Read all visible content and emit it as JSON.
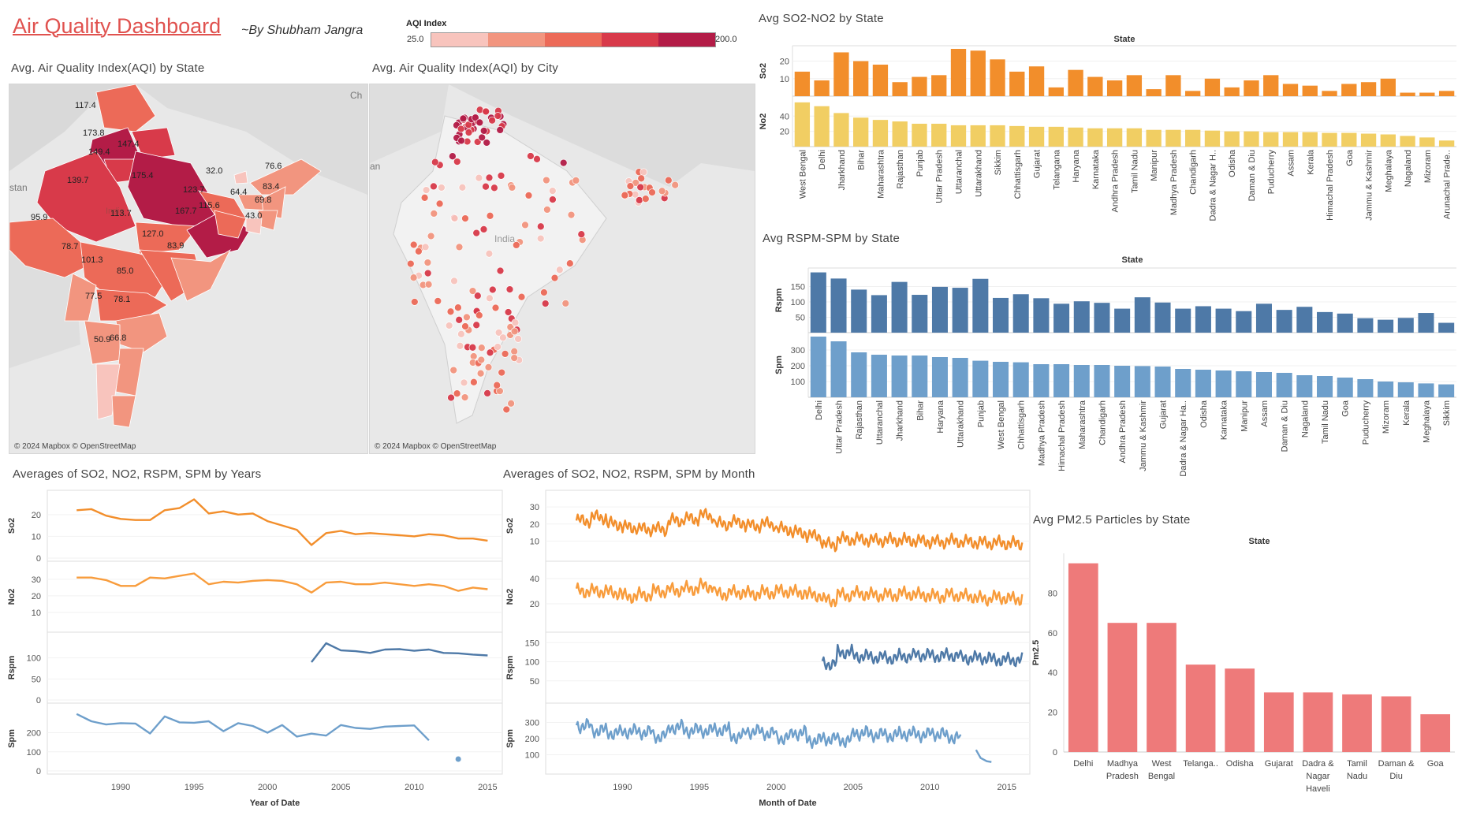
{
  "header": {
    "title": "Air Quality Dashboard",
    "byline": "~By Shubham Jangra"
  },
  "legend": {
    "title": "AQI Index",
    "min": "25.0",
    "max": "200.0",
    "colors": [
      "#f8c4bd",
      "#f2957f",
      "#ec6a58",
      "#d83a4a",
      "#b31c47"
    ]
  },
  "map_state": {
    "title": "Avg. Air Quality Index(AQI) by State",
    "attribution": "© 2024 Mapbox © OpenStreetMap",
    "labels": [
      "117.4",
      "173.8",
      "147.4",
      "149.4",
      "139.7",
      "175.4",
      "32.0",
      "76.6",
      "64.4",
      "83.4",
      "69.8",
      "43.0",
      "123.7",
      "115.6",
      "167.7",
      "113.7",
      "95.9",
      "127.0",
      "83.9",
      "78.7",
      "101.3",
      "85.0",
      "77.5",
      "78.1",
      "50.9",
      "66.8"
    ],
    "bg_words": [
      "stan",
      "Ch",
      "India"
    ]
  },
  "map_city": {
    "title": "Avg. Air Quality Index(AQI) by City",
    "attribution": "© 2024 Mapbox © OpenStreetMap",
    "bg_words": [
      "an",
      "India"
    ]
  },
  "chart_data": [
    {
      "id": "so2no2",
      "type": "bar",
      "title": "Avg SO2-NO2 by State",
      "xlabel": "State",
      "categories": [
        "West Bengal",
        "Delhi",
        "Jharkhand",
        "Bihar",
        "Maharashtra",
        "Rajasthan",
        "Punjab",
        "Uttar Pradesh",
        "Uttaranchal",
        "Uttarakhand",
        "Sikkim",
        "Chhattisgarh",
        "Gujarat",
        "Telangana",
        "Haryana",
        "Karnataka",
        "Andhra Pradesh",
        "Tamil Nadu",
        "Manipur",
        "Madhya Pradesh",
        "Chandigarh",
        "Dadra & Nagar H..",
        "Odisha",
        "Daman & Diu",
        "Puducherry",
        "Assam",
        "Kerala",
        "Himachal Pradesh",
        "Goa",
        "Jammu & Kashmir",
        "Meghalaya",
        "Nagaland",
        "Mizoram",
        "Arunachal Prade.."
      ],
      "series": [
        {
          "name": "So2",
          "color": "#f28e2b",
          "ticks": [
            10,
            20
          ],
          "max": 27,
          "values": [
            14,
            9,
            25,
            20,
            18,
            8,
            11,
            12,
            27,
            26,
            21,
            14,
            17,
            5,
            15,
            11,
            9,
            12,
            4,
            12,
            3,
            10,
            5,
            9,
            12,
            7,
            6,
            3,
            7,
            8,
            10,
            2,
            2,
            3
          ]
        },
        {
          "name": "No2",
          "color": "#f1ce63",
          "ticks": [
            20,
            40
          ],
          "max": 62,
          "values": [
            58,
            53,
            44,
            38,
            35,
            33,
            30,
            30,
            28,
            28,
            28,
            27,
            26,
            26,
            25,
            24,
            24,
            24,
            22,
            22,
            22,
            21,
            20,
            20,
            19,
            19,
            19,
            18,
            18,
            17,
            16,
            14,
            12,
            8
          ]
        }
      ]
    },
    {
      "id": "rspmspm",
      "type": "bar",
      "title": "Avg RSPM-SPM by State",
      "xlabel": "State",
      "categories": [
        "Delhi",
        "Uttar Pradesh",
        "Rajasthan",
        "Uttaranchal",
        "Jharkhand",
        "Bihar",
        "Haryana",
        "Uttarakhand",
        "Punjab",
        "West Bengal",
        "Chhattisgarh",
        "Madhya Pradesh",
        "Himachal Pradesh",
        "Maharashtra",
        "Chandigarh",
        "Andhra Pradesh",
        "Jammu & Kashmir",
        "Gujarat",
        "Dadra & Nagar Ha..",
        "Odisha",
        "Karnataka",
        "Manipur",
        "Assam",
        "Daman & Diu",
        "Nagaland",
        "Tamil Nadu",
        "Goa",
        "Puducherry",
        "Mizoram",
        "Kerala",
        "Meghalaya",
        "Sikkim"
      ],
      "series": [
        {
          "name": "Rspm",
          "color": "#4e79a7",
          "ticks": [
            50,
            100,
            150
          ],
          "max": 200,
          "values": [
            196,
            176,
            140,
            122,
            165,
            123,
            149,
            146,
            175,
            113,
            125,
            112,
            94,
            102,
            97,
            78,
            115,
            98,
            78,
            86,
            78,
            70,
            94,
            74,
            84,
            67,
            62,
            47,
            42,
            48,
            64,
            32
          ]
        },
        {
          "name": "Spm",
          "color": "#6e9fcb",
          "ticks": [
            100,
            200,
            300
          ],
          "max": 390,
          "values": [
            385,
            355,
            285,
            270,
            265,
            265,
            255,
            250,
            232,
            225,
            222,
            210,
            210,
            205,
            205,
            200,
            198,
            195,
            180,
            175,
            170,
            165,
            160,
            155,
            140,
            135,
            125,
            115,
            100,
            95,
            88,
            82
          ]
        }
      ]
    },
    {
      "id": "pm25",
      "type": "bar",
      "title": "Avg PM2.5 Particles by State",
      "xlabel": "State",
      "ylabel": "Pm2.5",
      "ticks": [
        0,
        20,
        40,
        60,
        80
      ],
      "ylim": [
        0,
        100
      ],
      "color": "#ee7a7a",
      "categories": [
        "Delhi",
        "Madhya Pradesh",
        "West Bengal",
        "Telanga..",
        "Odisha",
        "Gujarat",
        "Dadra & Nagar Haveli",
        "Tamil Nadu",
        "Daman & Diu",
        "Goa"
      ],
      "values": [
        95,
        65,
        65,
        44,
        42,
        30,
        30,
        29,
        28,
        19
      ]
    },
    {
      "id": "years",
      "type": "line",
      "title": "Averages of SO2, NO2, RSPM, SPM by Years",
      "xlabel": "Year of Date",
      "xticks": [
        1990,
        1995,
        2000,
        2005,
        2010,
        2015
      ],
      "xlim": [
        1985,
        2016
      ],
      "series": [
        {
          "name": "So2",
          "color": "#f28e2b",
          "ticks": [
            0,
            10,
            20
          ],
          "ylim": [
            0,
            29
          ],
          "points": [
            [
              1987,
              22
            ],
            [
              1988,
              22.5
            ],
            [
              1989,
              19.5
            ],
            [
              1990,
              18
            ],
            [
              1991,
              17.5
            ],
            [
              1992,
              17.5
            ],
            [
              1993,
              22
            ],
            [
              1994,
              23
            ],
            [
              1995,
              27
            ],
            [
              1996,
              20.5
            ],
            [
              1997,
              21.5
            ],
            [
              1998,
              20
            ],
            [
              1999,
              20.5
            ],
            [
              2000,
              17
            ],
            [
              2001,
              15
            ],
            [
              2002,
              13
            ],
            [
              2003,
              6
            ],
            [
              2004,
              11.5
            ],
            [
              2005,
              12.5
            ],
            [
              2006,
              11
            ],
            [
              2007,
              11.5
            ],
            [
              2008,
              11
            ],
            [
              2009,
              10.5
            ],
            [
              2010,
              10
            ],
            [
              2011,
              11
            ],
            [
              2012,
              10.5
            ],
            [
              2013,
              9
            ],
            [
              2014,
              9
            ],
            [
              2015,
              8
            ]
          ]
        },
        {
          "name": "No2",
          "color": "#f89c3c",
          "ticks": [
            10,
            20,
            30
          ],
          "ylim": [
            0,
            38
          ],
          "points": [
            [
              1987,
              31
            ],
            [
              1988,
              31
            ],
            [
              1989,
              29.5
            ],
            [
              1990,
              26
            ],
            [
              1991,
              26
            ],
            [
              1992,
              31
            ],
            [
              1993,
              30.5
            ],
            [
              1994,
              32
            ],
            [
              1995,
              33.5
            ],
            [
              1996,
              27
            ],
            [
              1997,
              28.5
            ],
            [
              1998,
              28
            ],
            [
              1999,
              29
            ],
            [
              2000,
              29.5
            ],
            [
              2001,
              29
            ],
            [
              2002,
              27
            ],
            [
              2003,
              22
            ],
            [
              2004,
              28
            ],
            [
              2005,
              28.5
            ],
            [
              2006,
              27
            ],
            [
              2007,
              27
            ],
            [
              2008,
              28
            ],
            [
              2009,
              27
            ],
            [
              2010,
              26
            ],
            [
              2011,
              27
            ],
            [
              2012,
              26
            ],
            [
              2013,
              23
            ],
            [
              2014,
              25
            ],
            [
              2015,
              24
            ]
          ]
        },
        {
          "name": "Rspm",
          "color": "#4e79a7",
          "ticks": [
            0,
            50,
            100
          ],
          "ylim": [
            0,
            150
          ],
          "points": [
            [
              2003,
              90
            ],
            [
              2004,
              135
            ],
            [
              2005,
              118
            ],
            [
              2006,
              116
            ],
            [
              2007,
              112
            ],
            [
              2008,
              120
            ],
            [
              2009,
              121
            ],
            [
              2010,
              117
            ],
            [
              2011,
              120
            ],
            [
              2012,
              112
            ],
            [
              2013,
              111
            ],
            [
              2014,
              108
            ],
            [
              2015,
              106
            ]
          ]
        },
        {
          "name": "Spm",
          "color": "#6e9fcb",
          "ticks": [
            0,
            100,
            200
          ],
          "ylim": [
            0,
            330
          ],
          "points": [
            [
              1987,
              298
            ],
            [
              1988,
              260
            ],
            [
              1989,
              243
            ],
            [
              1990,
              250
            ],
            [
              1991,
              248
            ],
            [
              1992,
              196
            ],
            [
              1993,
              285
            ],
            [
              1994,
              254
            ],
            [
              1995,
              252
            ],
            [
              1996,
              260
            ],
            [
              1997,
              208
            ],
            [
              1998,
              250
            ],
            [
              1999,
              235
            ],
            [
              2000,
              200
            ],
            [
              2001,
              240
            ],
            [
              2002,
              180
            ],
            [
              2003,
              195
            ],
            [
              2004,
              185
            ],
            [
              2005,
              240
            ],
            [
              2006,
              225
            ],
            [
              2007,
              220
            ],
            [
              2008,
              232
            ],
            [
              2009,
              235
            ],
            [
              2010,
              238
            ],
            [
              2011,
              160
            ]
          ],
          "extra_point": [
            2013,
            62
          ]
        }
      ]
    },
    {
      "id": "months",
      "type": "line",
      "title": "Averages of SO2, NO2, RSPM, SPM by Month",
      "xlabel": "Month of Date",
      "xticks": [
        1990,
        1995,
        2000,
        2005,
        2010,
        2015
      ],
      "xlim": [
        1985,
        2016.5
      ],
      "series": [
        {
          "name": "So2",
          "color": "#f28e2b",
          "ticks": [
            10,
            20,
            30
          ],
          "ylim": [
            0,
            37
          ],
          "x_start": 1987,
          "x_end": 2016,
          "base": [
            22,
            24,
            20,
            18,
            17,
            17,
            22,
            23,
            25,
            20,
            21,
            19,
            20,
            17,
            15,
            13,
            8,
            11,
            11,
            10.5,
            10.5,
            10.5,
            10,
            9.5,
            10,
            9.5,
            9,
            9,
            8.5,
            8.5
          ],
          "amp": 5
        },
        {
          "name": "No2",
          "color": "#f89c3c",
          "ticks": [
            20,
            40
          ],
          "ylim": [
            0,
            50
          ],
          "x_start": 1987,
          "x_end": 2016,
          "base": [
            30,
            30,
            29,
            26,
            27,
            30,
            31,
            32,
            34,
            28,
            29,
            28,
            29,
            30,
            29,
            27,
            23,
            27,
            28,
            27,
            27,
            28,
            27,
            26,
            27,
            26,
            24,
            25,
            24,
            25
          ],
          "amp": 7
        },
        {
          "name": "Rspm",
          "color": "#4e79a7",
          "ticks": [
            50,
            100,
            150
          ],
          "ylim": [
            0,
            165
          ],
          "x_start": 2003,
          "x_end": 2016,
          "base": [
            95,
            125,
            115,
            112,
            110,
            115,
            118,
            115,
            117,
            110,
            110,
            105,
            105,
            105
          ],
          "amp": 22
        },
        {
          "name": "Spm",
          "color": "#6e9fcb",
          "ticks": [
            100,
            200,
            300
          ],
          "ylim": [
            0,
            390
          ],
          "x_start": 1987,
          "x_end": 2012,
          "base": [
            280,
            250,
            235,
            245,
            240,
            215,
            270,
            250,
            250,
            255,
            215,
            245,
            235,
            205,
            235,
            190,
            200,
            190,
            235,
            225,
            220,
            230,
            225,
            230,
            210,
            180
          ],
          "amp": 55,
          "tail": [
            [
              2013,
              130
            ],
            [
              2013.3,
              80
            ],
            [
              2013.7,
              60
            ],
            [
              2014,
              55
            ]
          ]
        }
      ]
    }
  ]
}
